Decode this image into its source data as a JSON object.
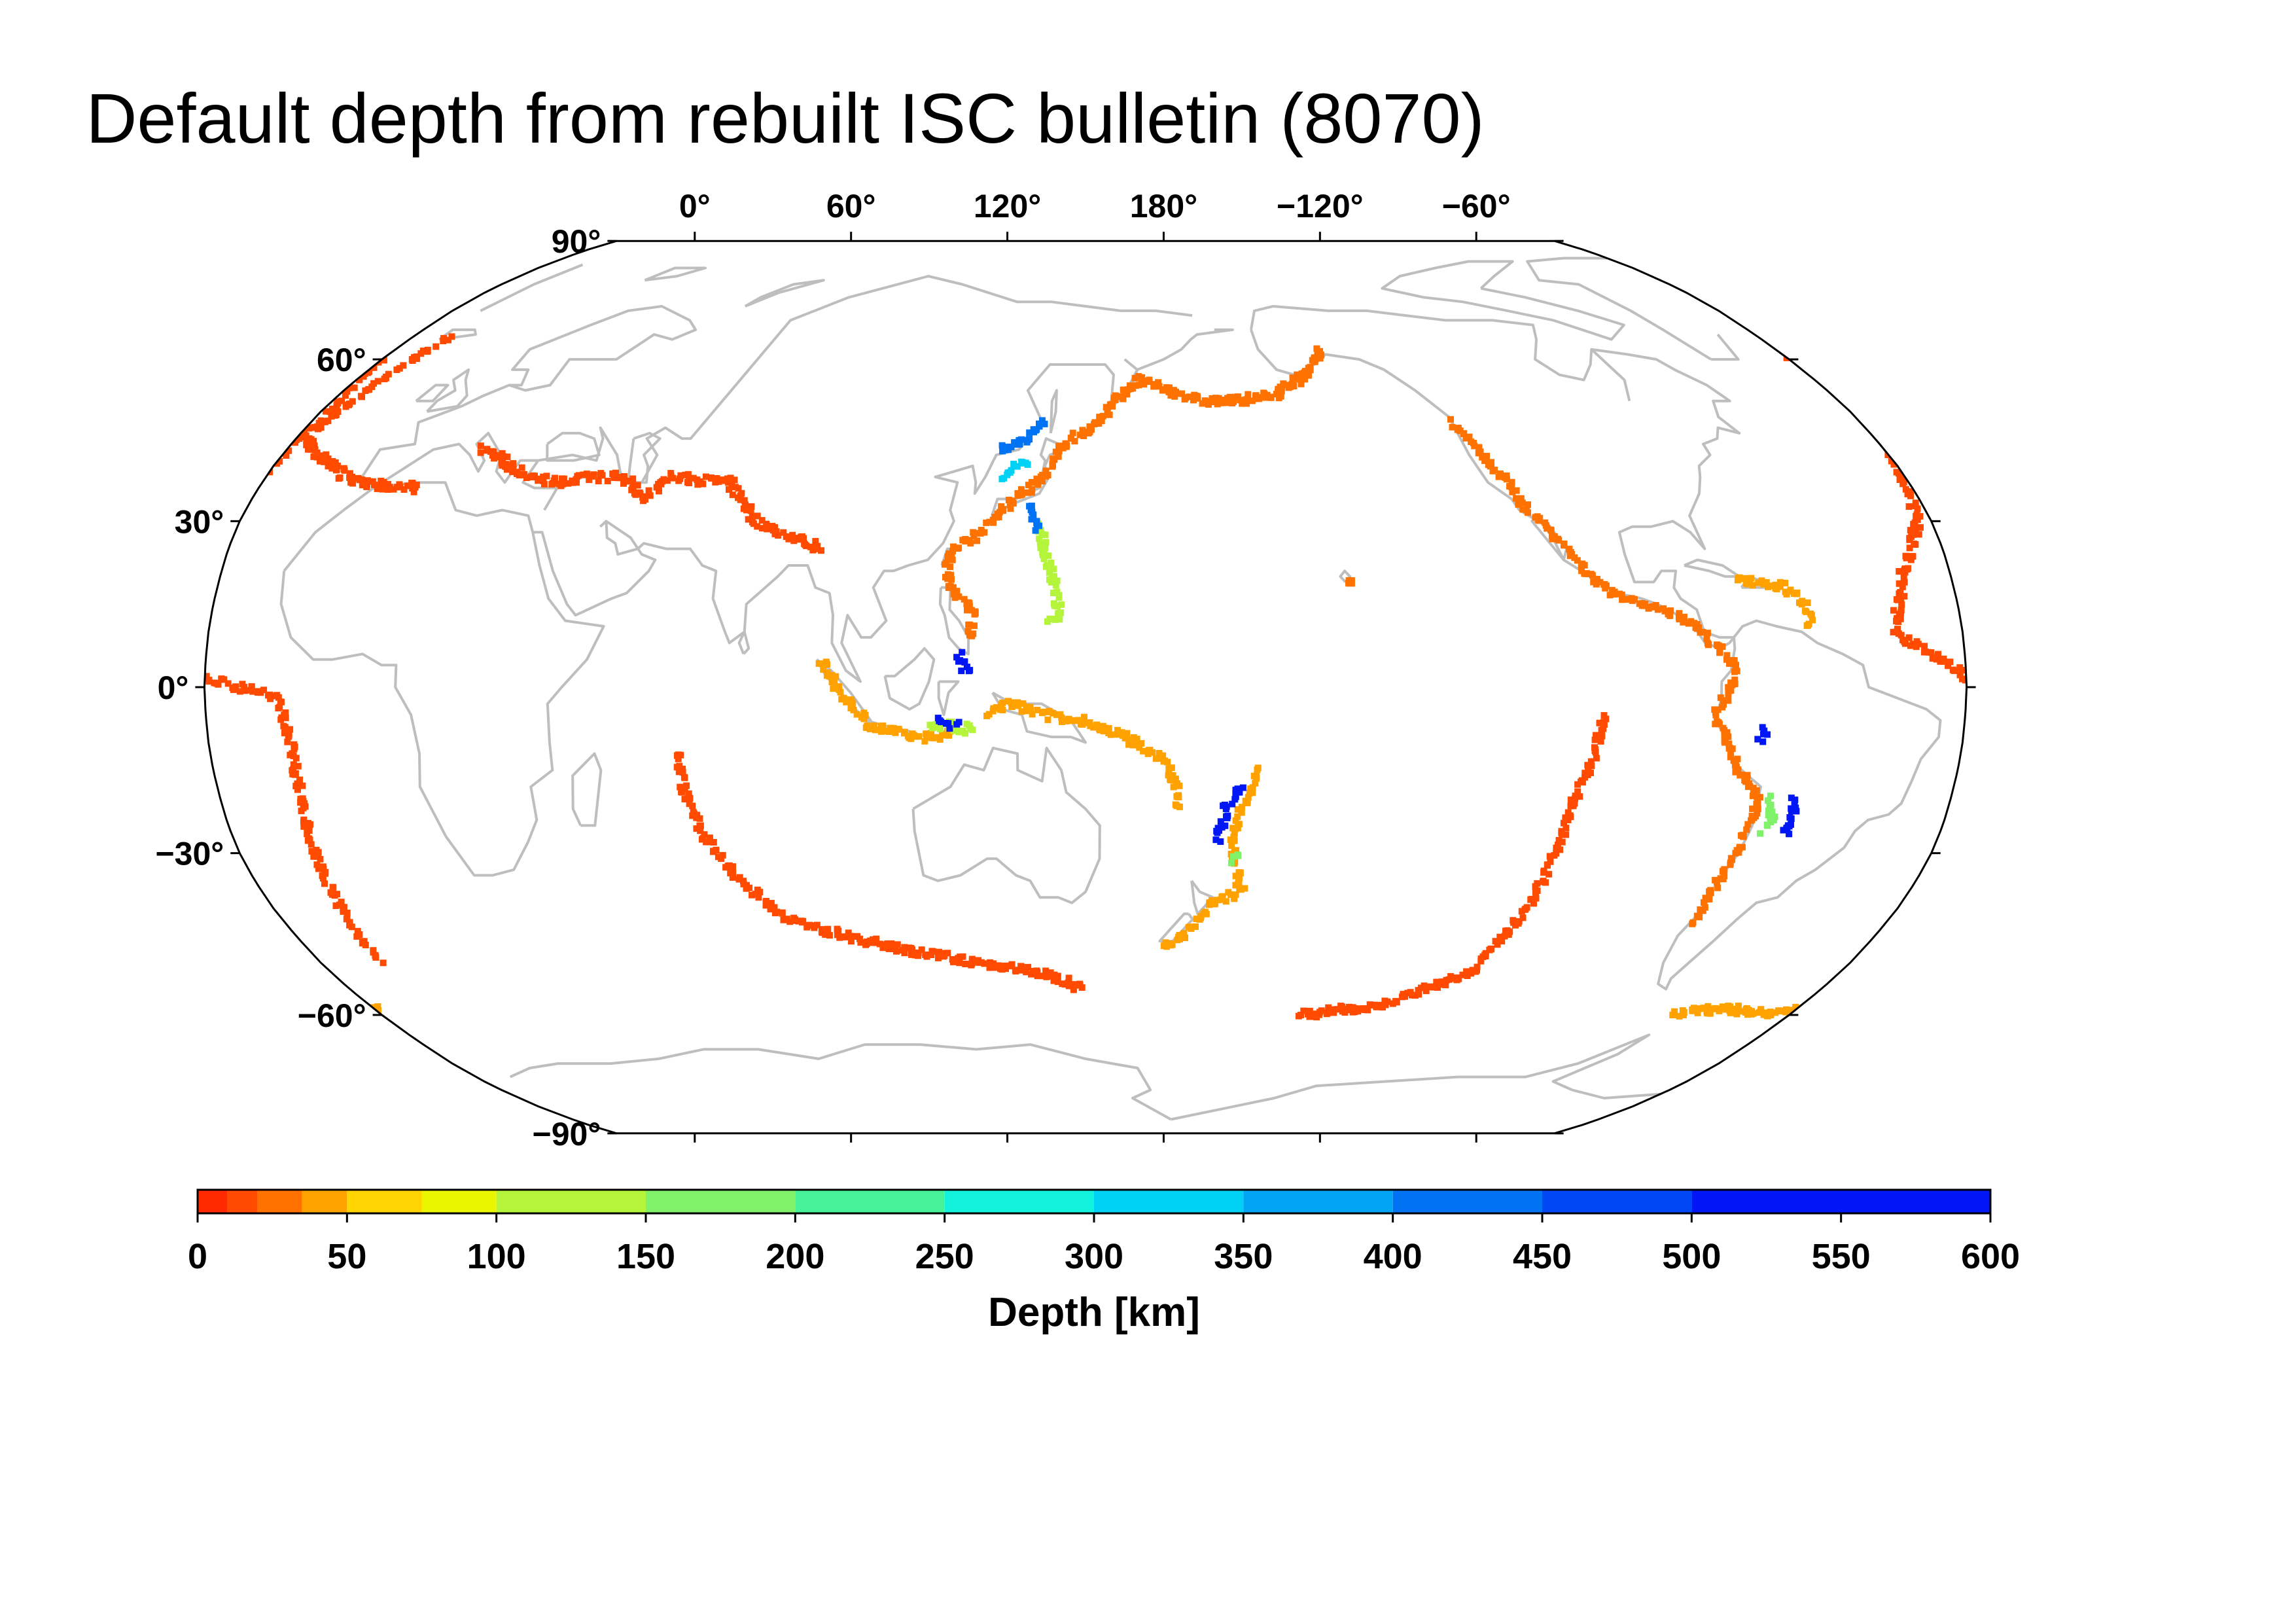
{
  "title": "Default depth from rebuilt ISC bulletin (8070)",
  "map": {
    "projection": "robinson",
    "center_longitude": 150,
    "top_lon_ticks": [
      "0°",
      "60°",
      "120°",
      "180°",
      "−120°",
      "−60°"
    ],
    "top_lon_values": [
      0,
      60,
      120,
      180,
      -120,
      -60
    ],
    "left_lat_ticks": [
      "90°",
      "60°",
      "30°",
      "0°",
      "−30°",
      "−60°",
      "−90°"
    ],
    "left_lat_values": [
      90,
      60,
      30,
      0,
      -30,
      -60,
      -90
    ],
    "coastline_color": "#bebebe",
    "frame_color": "#000000"
  },
  "colorbar": {
    "title": "Depth [km]",
    "tick_labels": [
      "0",
      "50",
      "100",
      "150",
      "200",
      "250",
      "300",
      "350",
      "400",
      "450",
      "500",
      "550",
      "600"
    ],
    "tick_values": [
      0,
      50,
      100,
      150,
      200,
      250,
      300,
      350,
      400,
      450,
      500,
      550,
      600
    ],
    "bins": [
      {
        "from": 0,
        "to": 10,
        "color": "#ff2a00"
      },
      {
        "from": 10,
        "to": 20,
        "color": "#ff4a00"
      },
      {
        "from": 20,
        "to": 35,
        "color": "#ff7200"
      },
      {
        "from": 35,
        "to": 50,
        "color": "#ffa200"
      },
      {
        "from": 50,
        "to": 75,
        "color": "#ffd400"
      },
      {
        "from": 75,
        "to": 100,
        "color": "#eaf500"
      },
      {
        "from": 100,
        "to": 150,
        "color": "#b4f53c"
      },
      {
        "from": 150,
        "to": 200,
        "color": "#7ff26a"
      },
      {
        "from": 200,
        "to": 250,
        "color": "#48f29a"
      },
      {
        "from": 250,
        "to": 300,
        "color": "#12f2dc"
      },
      {
        "from": 300,
        "to": 350,
        "color": "#00d2f5"
      },
      {
        "from": 350,
        "to": 400,
        "color": "#00a6f5"
      },
      {
        "from": 400,
        "to": 450,
        "color": "#0073f5"
      },
      {
        "from": 450,
        "to": 500,
        "color": "#0048f5"
      },
      {
        "from": 500,
        "to": 600,
        "color": "#0016f5"
      }
    ]
  },
  "chart_data": {
    "type": "scatter",
    "title": "Default depth from rebuilt ISC bulletin (8070)",
    "color_variable": "Depth [km]",
    "series": [
      {
        "values": [
          [
            14,
            43
          ],
          [
            18,
            42
          ],
          [
            22,
            40
          ],
          [
            28,
            38
          ],
          [
            35,
            37
          ],
          [
            42,
            38
          ],
          [
            48,
            38
          ],
          [
            55,
            34
          ],
          [
            58,
            38
          ],
          [
            72,
            37
          ],
          [
            80,
            30
          ],
          [
            85,
            28
          ],
          [
            95,
            25
          ],
          [
            5,
            36
          ],
          [
            -10,
            37
          ],
          [
            -28,
            45
          ],
          [
            -20,
            65
          ]
        ],
        "depth": 15
      },
      {
        "values": [
          [
            96,
            5
          ],
          [
            97,
            3
          ],
          [
            99,
            0
          ],
          [
            101,
            -2
          ],
          [
            103,
            -4
          ],
          [
            106,
            -7
          ],
          [
            110,
            -8
          ],
          [
            115,
            -9
          ],
          [
            119,
            -9
          ],
          [
            123,
            -8
          ]
        ],
        "depth": 40
      },
      {
        "values": [
          [
            127,
            -7
          ],
          [
            125,
            -8
          ],
          [
            123,
            -7
          ],
          [
            121,
            -6
          ],
          [
            118,
            -8
          ]
        ],
        "depth": 100
      },
      {
        "values": [
          [
            124,
            6
          ],
          [
            125,
            4
          ],
          [
            126,
            2
          ]
        ],
        "depth": 550
      },
      {
        "values": [
          [
            120,
            -6
          ],
          [
            122,
            -6.5
          ],
          [
            124,
            -7
          ]
        ],
        "depth": 500
      },
      {
        "values": [
          [
            126,
            9
          ],
          [
            127,
            12
          ],
          [
            126,
            15
          ],
          [
            122,
            18
          ],
          [
            121,
            22
          ],
          [
            122,
            25
          ],
          [
            128,
            28
          ],
          [
            131,
            31
          ],
          [
            135,
            34
          ],
          [
            138,
            36
          ],
          [
            141,
            38
          ],
          [
            143,
            41
          ],
          [
            145,
            44
          ],
          [
            149,
            46
          ],
          [
            153,
            48
          ],
          [
            156,
            51
          ],
          [
            160,
            54
          ],
          [
            163,
            56
          ],
          [
            170,
            54
          ],
          [
            178,
            52
          ],
          [
            -175,
            52
          ],
          [
            -165,
            53
          ],
          [
            -155,
            57
          ],
          [
            -150,
            61
          ],
          [
            -148,
            62
          ]
        ],
        "depth": 30
      },
      {
        "values": [
          [
            131,
            43
          ],
          [
            137,
            45
          ],
          [
            139,
            47
          ],
          [
            141,
            48
          ]
        ],
        "depth": 400
      },
      {
        "values": [
          [
            132,
            38
          ],
          [
            135,
            40
          ],
          [
            137,
            41
          ]
        ],
        "depth": 300
      },
      {
        "values": [
          [
            140,
            30
          ],
          [
            141,
            26
          ],
          [
            143,
            20
          ],
          [
            144,
            16
          ],
          [
            145,
            13
          ],
          [
            142,
            12
          ]
        ],
        "depth": 100
      },
      {
        "values": [
          [
            138,
            33
          ],
          [
            139,
            30
          ],
          [
            140,
            28
          ]
        ],
        "depth": 400
      },
      {
        "values": [
          [
            130,
            -5
          ],
          [
            134,
            -3
          ],
          [
            138,
            -4
          ],
          [
            142,
            -5
          ],
          [
            146,
            -6
          ],
          [
            150,
            -6
          ],
          [
            154,
            -8
          ],
          [
            158,
            -9
          ],
          [
            162,
            -11
          ],
          [
            166,
            -13
          ],
          [
            168,
            -16
          ],
          [
            169,
            -19
          ],
          [
            170,
            -22
          ]
        ],
        "depth": 40
      },
      {
        "values": [
          [
            -174,
            -15
          ],
          [
            -175,
            -17
          ],
          [
            -176,
            -19
          ],
          [
            -177,
            -21
          ],
          [
            -178,
            -24
          ],
          [
            -179,
            -26
          ],
          [
            -179,
            -28
          ],
          [
            -178,
            -31
          ],
          [
            -177,
            -34
          ],
          [
            -176,
            -37
          ],
          [
            178,
            -39
          ],
          [
            175,
            -42
          ],
          [
            172,
            -45
          ],
          [
            168,
            -47
          ]
        ],
        "depth": 40
      },
      {
        "values": [
          [
            -178,
            -18
          ],
          [
            -179,
            -20
          ],
          [
            179,
            -22
          ],
          [
            179,
            -24
          ],
          [
            178,
            -26
          ],
          [
            178,
            -28
          ]
        ],
        "depth": 550
      },
      {
        "values": [
          [
            -178,
            -30
          ],
          [
            -178,
            -32
          ]
        ],
        "depth": 150
      },
      {
        "values": [
          [
            -125,
            48
          ],
          [
            -123,
            45
          ],
          [
            -120,
            40
          ],
          [
            -117,
            36
          ],
          [
            -116,
            33
          ],
          [
            -112,
            29
          ],
          [
            -108,
            24
          ],
          [
            -104,
            19
          ],
          [
            -98,
            16
          ],
          [
            -92,
            14
          ],
          [
            -88,
            13
          ],
          [
            -85,
            11
          ],
          [
            -82,
            8
          ],
          [
            -78,
            5
          ],
          [
            -77,
            2
          ],
          [
            -79,
            -1
          ],
          [
            -80,
            -3
          ],
          [
            -81,
            -6
          ],
          [
            -79,
            -9
          ],
          [
            -77,
            -12
          ],
          [
            -75,
            -15
          ],
          [
            -72,
            -18
          ],
          [
            -70,
            -20
          ],
          [
            -70,
            -23
          ],
          [
            -71,
            -26
          ],
          [
            -71,
            -30
          ],
          [
            -72,
            -33
          ],
          [
            -73,
            -36
          ],
          [
            -73,
            -40
          ],
          [
            -74,
            -43
          ]
        ],
        "depth": 30
      },
      {
        "values": [
          [
            -68,
            -20
          ],
          [
            -67,
            -22
          ],
          [
            -66,
            -24
          ],
          [
            -68,
            -26
          ]
        ],
        "depth": 150
      },
      {
        "values": [
          [
            -63,
            -20
          ],
          [
            -62,
            -23
          ],
          [
            -63,
            -25
          ],
          [
            -62,
            -27
          ]
        ],
        "depth": 550
      },
      {
        "values": [
          [
            -72,
            -8
          ],
          [
            -70,
            -10
          ]
        ],
        "depth": 600
      },
      {
        "values": [
          [
            -75,
            20
          ],
          [
            -70,
            19
          ],
          [
            -65,
            18
          ],
          [
            -62,
            16
          ],
          [
            -61,
            13
          ],
          [
            -62,
            11
          ]
        ],
        "depth": 40
      },
      {
        "values": [
          [
            -30,
            60
          ],
          [
            -28,
            50
          ],
          [
            -30,
            40
          ],
          [
            -33,
            30
          ],
          [
            -40,
            20
          ],
          [
            -44,
            10
          ],
          [
            -30,
            2
          ],
          [
            -15,
            -2
          ],
          [
            -13,
            -10
          ],
          [
            -13,
            -20
          ],
          [
            -14,
            -30
          ],
          [
            -15,
            -40
          ],
          [
            -16,
            -50
          ]
        ],
        "depth": 10
      },
      {
        "values": [
          [
            66,
            -12
          ],
          [
            67,
            -20
          ],
          [
            70,
            -28
          ],
          [
            75,
            -35
          ],
          [
            83,
            -42
          ],
          [
            95,
            -45
          ],
          [
            110,
            -48
          ],
          [
            125,
            -50
          ],
          [
            140,
            -52
          ],
          [
            150,
            -55
          ],
          [
            -155,
            -60
          ],
          [
            -135,
            -58
          ],
          [
            -118,
            -52
          ],
          [
            -112,
            -40
          ],
          [
            -110,
            -30
          ],
          [
            -108,
            -20
          ],
          [
            -105,
            -12
          ],
          [
            -104,
            -5
          ]
        ],
        "depth": 10
      },
      {
        "values": [
          [
            -155,
            19
          ]
        ],
        "depth": 20
      },
      {
        "values": [
          [
            -60,
            -60
          ],
          [
            -55,
            -59
          ],
          [
            -45,
            -59
          ],
          [
            -35,
            -60
          ],
          [
            -28,
            -58
          ],
          [
            -62,
            -62
          ]
        ],
        "depth": 40
      }
    ]
  }
}
